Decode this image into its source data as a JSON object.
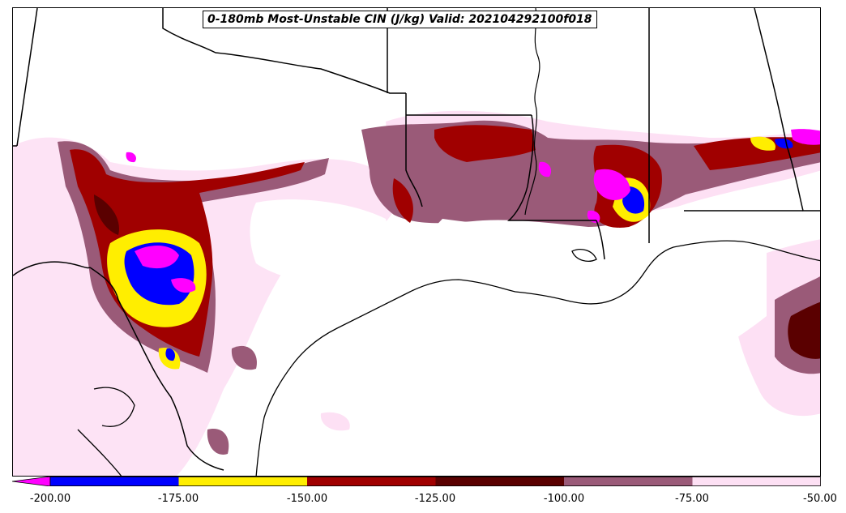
{
  "title": "0-180mb Most-Unstable CIN (J/kg) Valid: 202104292100f018",
  "colorbar": {
    "ticks": [
      "-200.00",
      "-175.00",
      "-150.00",
      "-125.00",
      "-100.00",
      "-75.00",
      "-50.00"
    ],
    "colors": [
      "#0000ff",
      "#ffee00",
      "#a00000",
      "#5a0000",
      "#9a5a78",
      "#fde0f4"
    ],
    "extend_color": "#ff00ff"
  }
}
